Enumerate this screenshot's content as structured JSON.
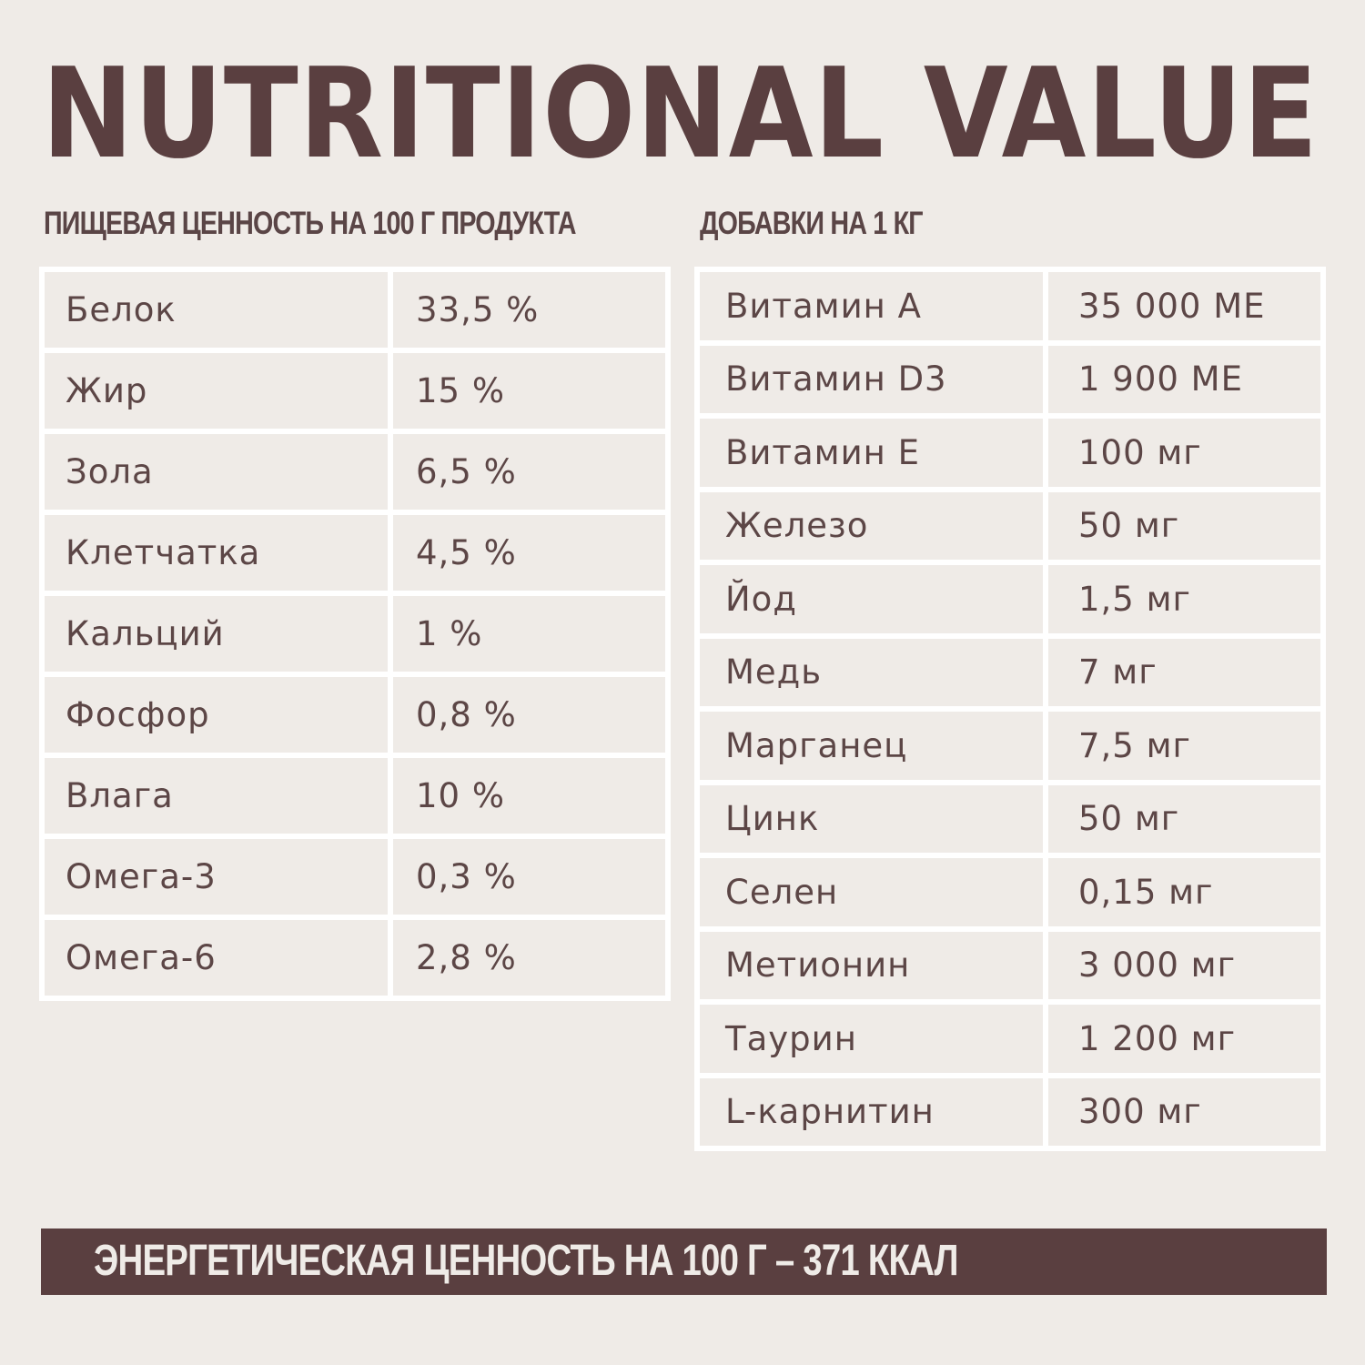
{
  "title": "NUTRITIONAL VALUE",
  "nutrition": {
    "heading": "ПИЩЕВАЯ ЦЕННОСТЬ НА 100 Г ПРОДУКТА",
    "rows": [
      {
        "name": "Белок",
        "value": "33,5 %"
      },
      {
        "name": "Жир",
        "value": "15 %"
      },
      {
        "name": "Зола",
        "value": "6,5 %"
      },
      {
        "name": "Клетчатка",
        "value": "4,5 %"
      },
      {
        "name": "Кальций",
        "value": "1 %"
      },
      {
        "name": "Фосфор",
        "value": "0,8 %"
      },
      {
        "name": "Влага",
        "value": "10 %"
      },
      {
        "name": "Омега-3",
        "value": "0,3 %"
      },
      {
        "name": "Омега-6",
        "value": "2,8 %"
      }
    ]
  },
  "additives": {
    "heading": "ДОБАВКИ НА 1 КГ",
    "rows": [
      {
        "name": "Витамин А",
        "value": "35 000 МЕ"
      },
      {
        "name": "Витамин D3",
        "value": "1 900 МЕ"
      },
      {
        "name": "Витамин Е",
        "value": "100 мг"
      },
      {
        "name": "Железо",
        "value": "50 мг"
      },
      {
        "name": "Йод",
        "value": "1,5 мг"
      },
      {
        "name": "Медь",
        "value": "7 мг"
      },
      {
        "name": "Марганец",
        "value": "7,5 мг"
      },
      {
        "name": "Цинк",
        "value": "50 мг"
      },
      {
        "name": "Селен",
        "value": "0,15 мг"
      },
      {
        "name": "Метионин",
        "value": "3 000 мг"
      },
      {
        "name": "Таурин",
        "value": "1 200 мг"
      },
      {
        "name": "L-карнитин",
        "value": "300 мг"
      }
    ]
  },
  "energy": {
    "text": "ЭНЕРГЕТИЧЕСКАЯ ЦЕННОСТЬ НА 100 Г – 371 ККАЛ"
  },
  "colors": {
    "brand_brown": "#5a3f40",
    "background": "#efebe7",
    "table_border": "#ffffff"
  }
}
